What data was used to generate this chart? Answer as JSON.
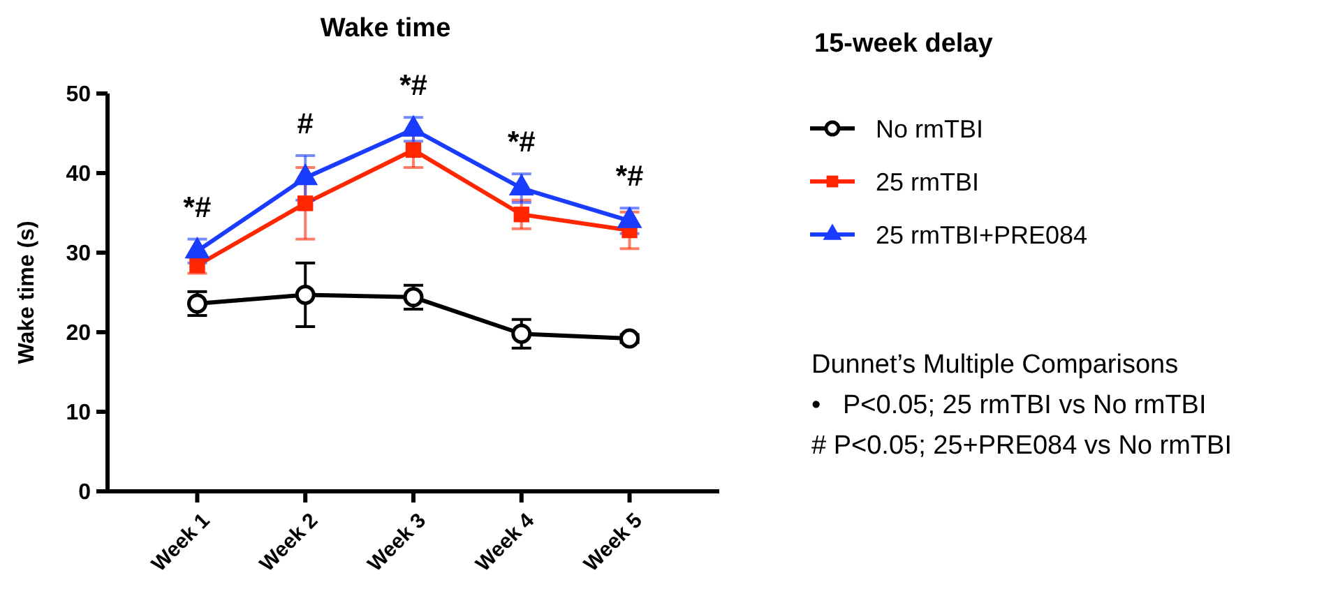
{
  "chart_data": {
    "type": "line",
    "title": "Wake time",
    "ylabel": "Wake time (s)",
    "legend_title": "15-week delay",
    "categories": [
      "Week 1",
      "Week 2",
      "Week 3",
      "Week 4",
      "Week 5"
    ],
    "series": [
      {
        "name": "No rmTBI",
        "color": "#000000",
        "marker": "circle",
        "values": [
          23.6,
          24.7,
          24.4,
          19.8,
          19.2
        ],
        "errors": [
          1.5,
          4,
          1.5,
          1.8,
          0.5
        ]
      },
      {
        "name": "25 rmTBI",
        "color": "#ff2600",
        "marker": "square",
        "values": [
          28.4,
          36.2,
          42.9,
          34.8,
          32.8
        ],
        "errors": [
          1,
          4.5,
          2.2,
          1.8,
          2.3
        ]
      },
      {
        "name": "25 rmTBI+PRE084",
        "color": "#1a3cff",
        "marker": "triangle",
        "values": [
          30.2,
          39.4,
          45.5,
          38.1,
          34.0
        ],
        "errors": [
          1.5,
          2.8,
          1.5,
          1.8,
          1.6
        ]
      }
    ],
    "ylim": [
      0,
      50
    ],
    "yticks": [
      0,
      10,
      20,
      30,
      40,
      50
    ],
    "grid": false,
    "legend": "right",
    "annotations": [
      "*#",
      "#",
      "*#",
      "*#",
      "*#",
      "Dunnet’s Multiple Comparisons",
      "•   P<0.05; 25 rmTBI vs No rmTBI",
      "# P<0.05; 25+PRE084 vs No rmTBI"
    ]
  }
}
